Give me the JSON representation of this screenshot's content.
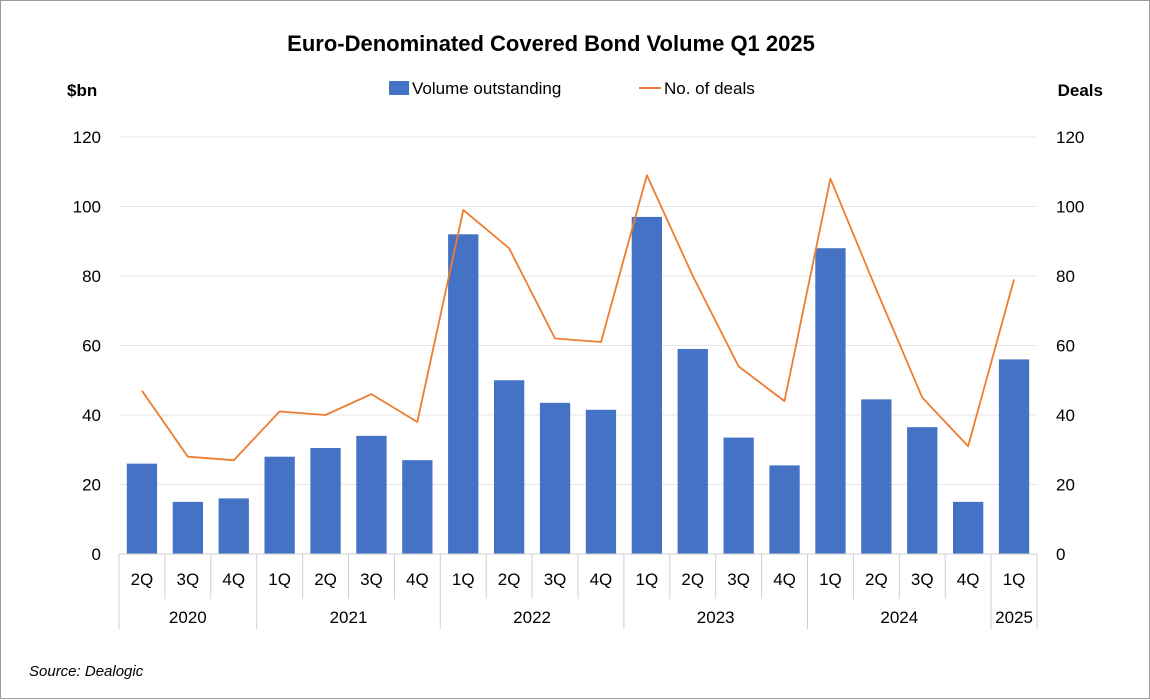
{
  "chart_data": {
    "type": "bar",
    "title": "Euro-Denominated Covered Bond Volume Q1 2025",
    "ylabel_left": "$bn",
    "ylabel_right": "Deals",
    "ylim": [
      0,
      120
    ],
    "y_ticks": [
      0,
      20,
      40,
      60,
      80,
      100,
      120
    ],
    "grid": true,
    "legend_position": "top",
    "categories": [
      "2Q",
      "3Q",
      "4Q",
      "1Q",
      "2Q",
      "3Q",
      "4Q",
      "1Q",
      "2Q",
      "3Q",
      "4Q",
      "1Q",
      "2Q",
      "3Q",
      "4Q",
      "1Q",
      "2Q",
      "3Q",
      "4Q",
      "1Q"
    ],
    "year_groups": [
      {
        "label": "2020",
        "count": 3
      },
      {
        "label": "2021",
        "count": 4
      },
      {
        "label": "2022",
        "count": 4
      },
      {
        "label": "2023",
        "count": 4
      },
      {
        "label": "2024",
        "count": 4
      },
      {
        "label": "2025",
        "count": 1
      }
    ],
    "series": [
      {
        "name": "Volume outstanding",
        "type": "bar",
        "axis": "left",
        "color": "#4472C4",
        "values": [
          26,
          15,
          16,
          28,
          30.5,
          34,
          27,
          92,
          50,
          43.5,
          41.5,
          97,
          59,
          33.5,
          25.5,
          88,
          44.5,
          36.5,
          15,
          56
        ]
      },
      {
        "name": "No. of deals",
        "type": "line",
        "axis": "right",
        "color": "#ED7D31",
        "values": [
          47,
          28,
          27,
          41,
          40,
          46,
          38,
          99,
          88,
          62,
          61,
          109,
          80,
          54,
          44,
          108,
          76,
          45,
          31,
          79
        ]
      }
    ],
    "source": "Source: Dealogic"
  }
}
